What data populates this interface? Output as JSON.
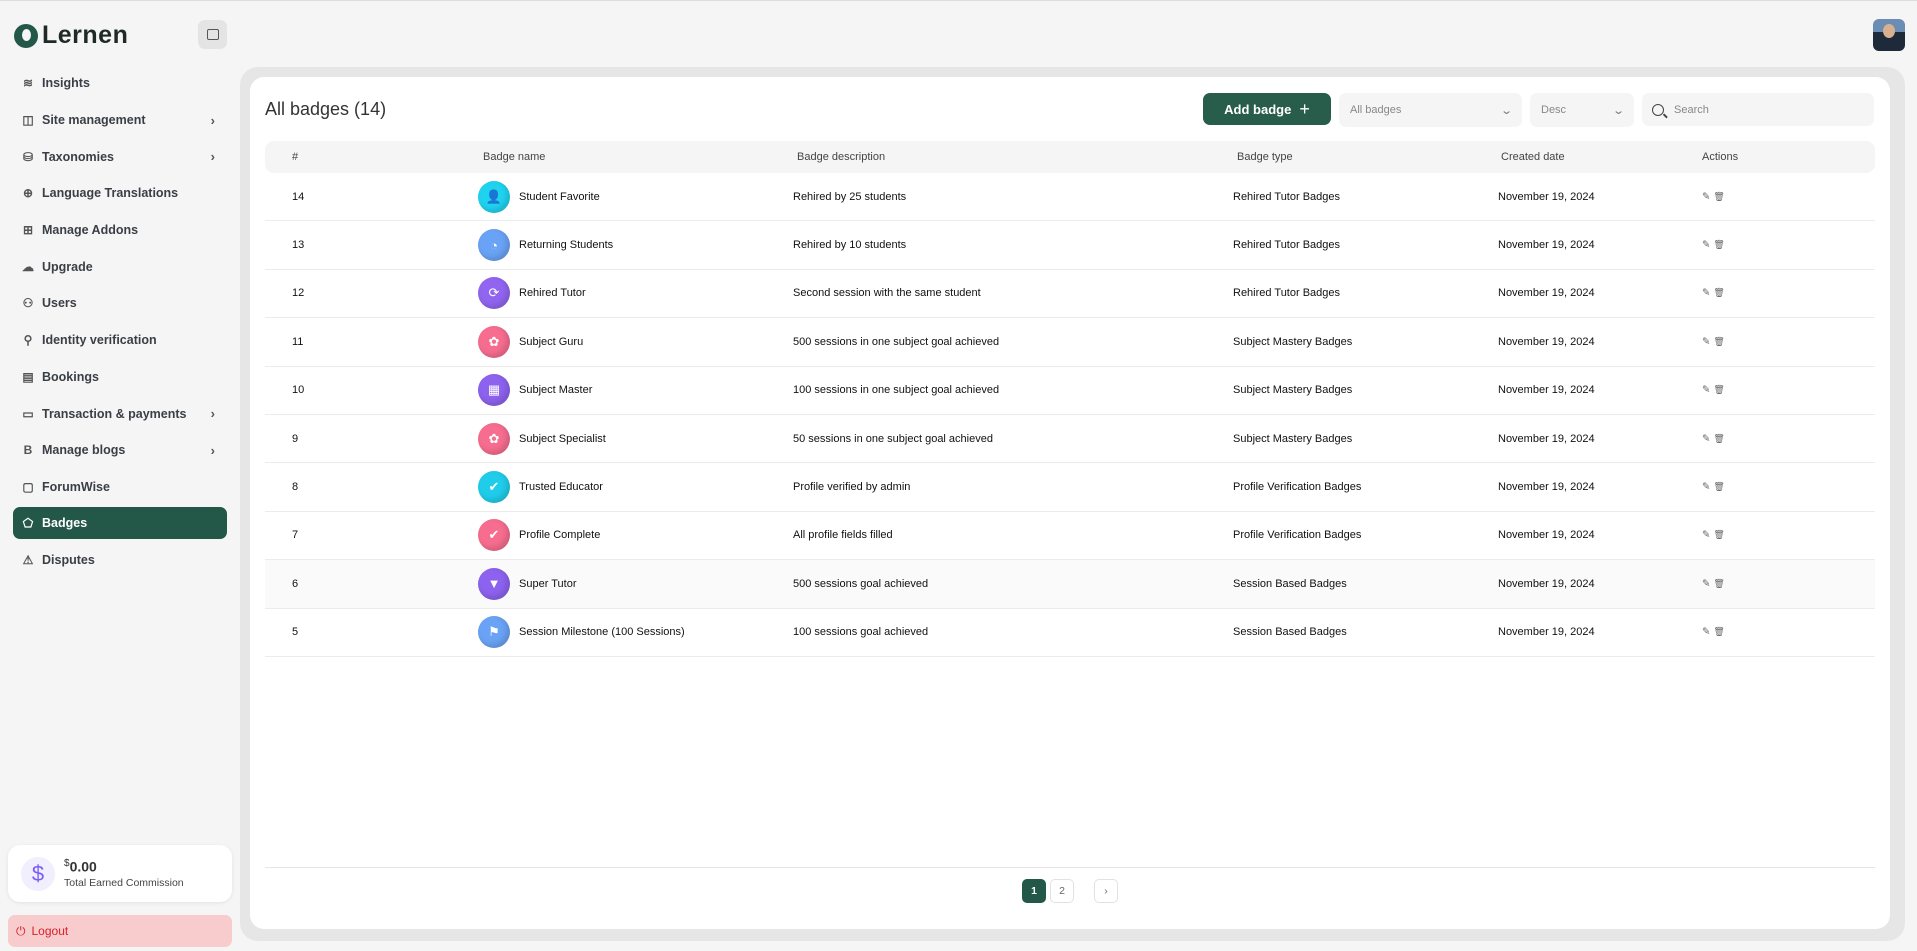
{
  "app": {
    "logo_text": "Lernen"
  },
  "sidebar": {
    "items": [
      {
        "label": "Insights",
        "icon": "layers-icon",
        "glyph": "≋",
        "chevron": false
      },
      {
        "label": "Site management",
        "icon": "layout-icon",
        "glyph": "◫",
        "chevron": true
      },
      {
        "label": "Taxonomies",
        "icon": "database-icon",
        "glyph": "⛁",
        "chevron": true
      },
      {
        "label": "Language Translations",
        "icon": "globe-icon",
        "glyph": "⊕",
        "chevron": false
      },
      {
        "label": "Manage Addons",
        "icon": "folder-plus-icon",
        "glyph": "⊞",
        "chevron": false
      },
      {
        "label": "Upgrade",
        "icon": "cloud-upload-icon",
        "glyph": "☁",
        "chevron": false
      },
      {
        "label": "Users",
        "icon": "users-icon",
        "glyph": "⚇",
        "chevron": false
      },
      {
        "label": "Identity verification",
        "icon": "user-check-icon",
        "glyph": "⚲",
        "chevron": false
      },
      {
        "label": "Bookings",
        "icon": "file-icon",
        "glyph": "▤",
        "chevron": false
      },
      {
        "label": "Transaction & payments",
        "icon": "credit-card-icon",
        "glyph": "▭",
        "chevron": true
      },
      {
        "label": "Manage blogs",
        "icon": "blog-icon",
        "glyph": "B",
        "chevron": true
      },
      {
        "label": "ForumWise",
        "icon": "message-icon",
        "glyph": "▢",
        "chevron": false
      },
      {
        "label": "Badges",
        "icon": "tag-icon",
        "glyph": "⬠",
        "chevron": false,
        "active": true
      },
      {
        "label": "Disputes",
        "icon": "alert-triangle-icon",
        "glyph": "⚠",
        "chevron": false
      }
    ],
    "chevron": "›",
    "commission": {
      "currency": "$",
      "amount": "0.00",
      "label": "Total Earned Commission",
      "icon": "$"
    },
    "logout": "Logout"
  },
  "main": {
    "title": "All badges (14)",
    "add_button": "Add badge",
    "add_plus": "+",
    "filter_select": "All badges",
    "sort_select": "Desc",
    "select_chevron": "⌄",
    "search_placeholder": "Search",
    "columns": [
      "#",
      "Badge name",
      "Badge description",
      "Badge type",
      "Created date",
      "Actions"
    ],
    "rows": [
      {
        "id": "14",
        "name": "Student Favorite",
        "description": "Rehired by 25 students",
        "type": "Rehired Tutor Badges",
        "date": "November 19, 2024",
        "color": "#1fd3ef",
        "glyph": "👤"
      },
      {
        "id": "13",
        "name": "Returning Students",
        "description": "Rehired by 10 students",
        "type": "Rehired Tutor Badges",
        "date": "November 19, 2024",
        "color": "#6aa3f5",
        "glyph": "◔"
      },
      {
        "id": "12",
        "name": "Rehired Tutor",
        "description": "Second session with the same student",
        "type": "Rehired Tutor Badges",
        "date": "November 19, 2024",
        "color": "#9165f0",
        "glyph": "⟳"
      },
      {
        "id": "11",
        "name": "Subject Guru",
        "description": "500 sessions in one subject goal achieved",
        "type": "Subject Mastery Badges",
        "date": "November 19, 2024",
        "color": "#f66d8f",
        "glyph": "✿"
      },
      {
        "id": "10",
        "name": "Subject Master",
        "description": "100 sessions in one subject goal achieved",
        "type": "Subject Mastery Badges",
        "date": "November 19, 2024",
        "color": "#8c62ee",
        "glyph": "▦"
      },
      {
        "id": "9",
        "name": "Subject Specialist",
        "description": "50 sessions in one subject goal achieved",
        "type": "Subject Mastery Badges",
        "date": "November 19, 2024",
        "color": "#f66d8f",
        "glyph": "✿"
      },
      {
        "id": "8",
        "name": "Trusted Educator",
        "description": "Profile verified by admin",
        "type": "Profile Verification Badges",
        "date": "November 19, 2024",
        "color": "#1fcdea",
        "glyph": "✔"
      },
      {
        "id": "7",
        "name": "Profile Complete",
        "description": "All profile fields filled",
        "type": "Profile Verification Badges",
        "date": "November 19, 2024",
        "color": "#f66d8f",
        "glyph": "✔"
      },
      {
        "id": "6",
        "name": "Super Tutor",
        "description": "500 sessions goal achieved",
        "type": "Session Based Badges",
        "date": "November 19, 2024",
        "color": "#8c62ee",
        "glyph": "▼"
      },
      {
        "id": "5",
        "name": "Session Milestone (100 Sessions)",
        "description": "100 sessions goal achieved",
        "type": "Session Based Badges",
        "date": "November 19, 2024",
        "color": "#6aa3f5",
        "glyph": "⚑"
      }
    ],
    "actions": {
      "edit": "✎",
      "delete": "🗑"
    },
    "pagination": {
      "pages": [
        "1",
        "2"
      ],
      "current": "1",
      "next": "›"
    }
  },
  "colors": {
    "accent": "#235748",
    "logout_bg": "#f8cbcd",
    "logout_text": "#d9202a"
  }
}
